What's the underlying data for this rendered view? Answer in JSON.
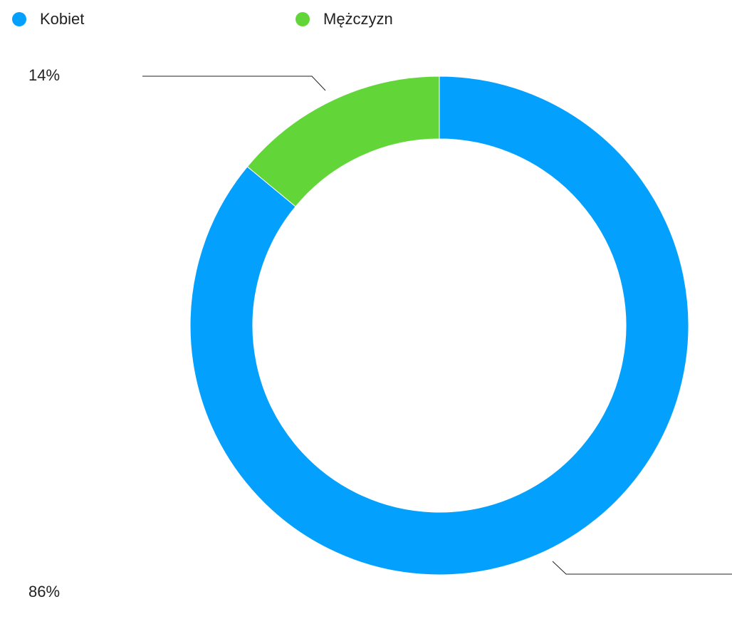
{
  "chart_data": {
    "type": "donut",
    "categories": [
      "Kobiet",
      "Mężczyzn"
    ],
    "values": [
      86,
      14
    ],
    "value_labels": [
      "86%",
      "14%"
    ],
    "colors": [
      "#03a1fd",
      "#62d639"
    ],
    "legend": "top"
  }
}
